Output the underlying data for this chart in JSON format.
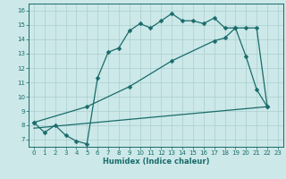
{
  "xlabel": "Humidex (Indice chaleur)",
  "bg_color": "#cce8e8",
  "line_color": "#1a6b6b",
  "grid_color": "#aacfcf",
  "xlim": [
    -0.5,
    23.5
  ],
  "ylim": [
    6.5,
    16.5
  ],
  "xticks": [
    0,
    1,
    2,
    3,
    4,
    5,
    6,
    7,
    8,
    9,
    10,
    11,
    12,
    13,
    14,
    15,
    16,
    17,
    18,
    19,
    20,
    21,
    22,
    23
  ],
  "yticks": [
    7,
    8,
    9,
    10,
    11,
    12,
    13,
    14,
    15,
    16
  ],
  "line1_x": [
    0,
    1,
    2,
    3,
    4,
    5,
    6,
    7,
    8,
    9,
    10,
    11,
    12,
    13,
    14,
    15,
    16,
    17,
    18,
    19,
    20,
    21,
    22
  ],
  "line1_y": [
    8.2,
    7.5,
    8.0,
    7.3,
    6.9,
    6.7,
    11.3,
    13.1,
    13.4,
    14.6,
    15.1,
    14.8,
    15.3,
    15.8,
    15.3,
    15.3,
    15.1,
    15.5,
    14.8,
    14.8,
    12.8,
    10.5,
    9.3
  ],
  "line2_x": [
    0,
    5,
    9,
    13,
    17,
    18,
    19,
    20,
    21,
    22
  ],
  "line2_y": [
    8.2,
    9.3,
    10.7,
    12.5,
    13.9,
    14.1,
    14.8,
    14.8,
    14.8,
    9.3
  ],
  "line3_x": [
    0,
    22
  ],
  "line3_y": [
    7.8,
    9.3
  ],
  "markersize": 2.5,
  "linewidth": 0.9
}
